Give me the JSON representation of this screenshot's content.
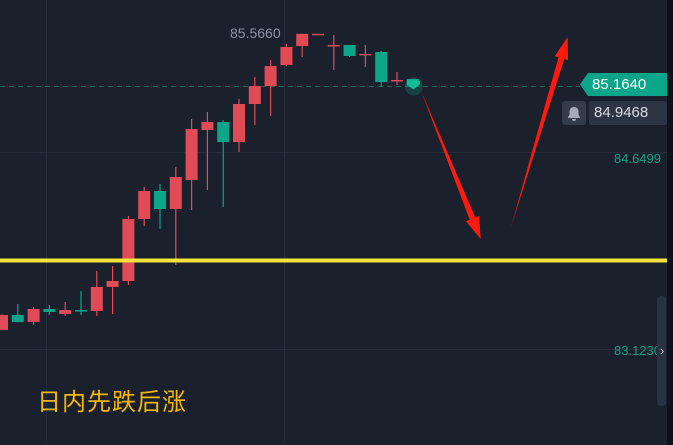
{
  "chart_data": {
    "type": "candlestick",
    "title": "",
    "colors": {
      "up": "#e04b56",
      "down": "#0ba68a",
      "background": "#1b202d",
      "grid": "#252c3a",
      "support_line": "#f5e33a",
      "arrow": "#ff1a0d"
    },
    "ylim": [
      82.379,
      85.828
    ],
    "grid": true,
    "y_ticks": [
      "84.6499",
      "83.1230"
    ],
    "candles": [
      {
        "o": 83.27,
        "h": 83.39,
        "l": 83.27,
        "c": 83.387
      },
      {
        "o": 83.387,
        "h": 83.472,
        "l": 83.332,
        "c": 83.332
      },
      {
        "o": 83.332,
        "h": 83.449,
        "l": 83.309,
        "c": 83.433
      },
      {
        "o": 83.433,
        "h": 83.464,
        "l": 83.387,
        "c": 83.41
      },
      {
        "o": 83.394,
        "h": 83.487,
        "l": 83.379,
        "c": 83.425
      },
      {
        "o": 83.425,
        "h": 83.573,
        "l": 83.387,
        "c": 83.418
      },
      {
        "o": 83.418,
        "h": 83.728,
        "l": 83.379,
        "c": 83.604
      },
      {
        "o": 83.604,
        "h": 83.766,
        "l": 83.394,
        "c": 83.65
      },
      {
        "o": 83.65,
        "h": 84.154,
        "l": 83.619,
        "c": 84.131
      },
      {
        "o": 84.131,
        "h": 84.379,
        "l": 84.076,
        "c": 84.348
      },
      {
        "o": 84.348,
        "h": 84.402,
        "l": 84.053,
        "c": 84.208
      },
      {
        "o": 84.208,
        "h": 84.534,
        "l": 83.774,
        "c": 84.456
      },
      {
        "o": 84.433,
        "h": 84.906,
        "l": 84.2,
        "c": 84.828
      },
      {
        "o": 84.82,
        "h": 84.96,
        "l": 84.355,
        "c": 84.882
      },
      {
        "o": 84.882,
        "h": 84.898,
        "l": 84.224,
        "c": 84.727
      },
      {
        "o": 84.727,
        "h": 85.061,
        "l": 84.65,
        "c": 85.022
      },
      {
        "o": 85.022,
        "h": 85.231,
        "l": 84.859,
        "c": 85.161
      },
      {
        "o": 85.161,
        "h": 85.363,
        "l": 84.929,
        "c": 85.316
      },
      {
        "o": 85.324,
        "h": 85.487,
        "l": 85.316,
        "c": 85.464
      },
      {
        "o": 85.471,
        "h": 85.566,
        "l": 85.386,
        "c": 85.566
      },
      {
        "o": 85.558,
        "h": 85.566,
        "l": 85.558,
        "c": 85.566
      },
      {
        "o": 85.471,
        "h": 85.557,
        "l": 85.285,
        "c": 85.479
      },
      {
        "o": 85.479,
        "h": 85.479,
        "l": 85.386,
        "c": 85.394
      },
      {
        "o": 85.402,
        "h": 85.479,
        "l": 85.309,
        "c": 85.41
      },
      {
        "o": 85.425,
        "h": 85.433,
        "l": 85.154,
        "c": 85.192
      },
      {
        "o": 85.2,
        "h": 85.27,
        "l": 85.169,
        "c": 85.208
      },
      {
        "o": 85.216,
        "h": 85.216,
        "l": 85.164,
        "c": 85.164
      }
    ],
    "high_label": "85.5660",
    "last_price": "85.1640",
    "last_price_value": 85.164,
    "alert_price": "84.9468",
    "horizontal_line": 83.809,
    "arrows": [
      {
        "from": [
          26.5,
          85.13
        ],
        "to": [
          30.3,
          83.975
        ]
      },
      {
        "from": [
          32.2,
          84.061
        ],
        "to": [
          35.8,
          85.54
        ]
      }
    ]
  },
  "caption": "日内先跌后涨",
  "icons": {
    "alert": "bell-icon",
    "expand": "chevron-right-icon"
  }
}
